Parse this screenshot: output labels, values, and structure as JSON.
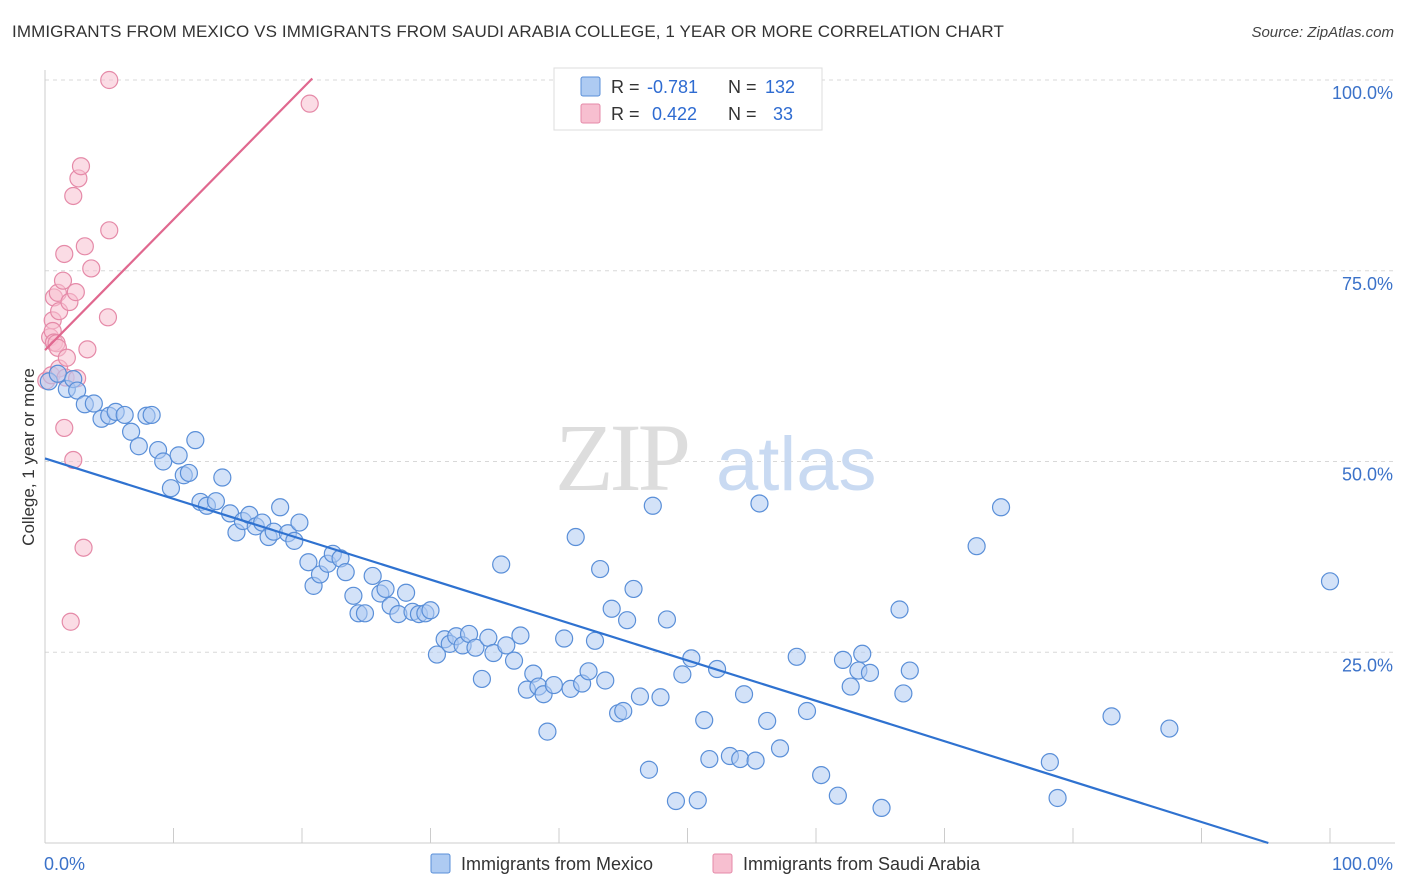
{
  "title": "IMMIGRANTS FROM MEXICO VS IMMIGRANTS FROM SAUDI ARABIA COLLEGE, 1 YEAR OR MORE CORRELATION CHART",
  "source": "Source: ZipAtlas.com",
  "watermark": {
    "zip": "ZIP",
    "atlas": "atlas"
  },
  "colors": {
    "mexico_fill": "#aecbf2",
    "mexico_stroke": "#5a8fd8",
    "mexico_line": "#2f72d0",
    "saudi_fill": "#f7bfd0",
    "saudi_stroke": "#e58aa8",
    "saudi_line": "#e0688f",
    "grid": "#d8d8d8",
    "tick_text": "#3b72c9"
  },
  "legend": {
    "rows": [
      {
        "r_label": "R =",
        "r_value": "-0.781",
        "n_label": "N =",
        "n_value": "132"
      },
      {
        "r_label": "R =",
        "r_value": "0.422",
        "n_label": "N =",
        "n_value": "33"
      }
    ]
  },
  "bottom_legend": {
    "mexico": "Immigrants from Mexico",
    "saudi": "Immigrants from Saudi Arabia"
  },
  "chart_data": {
    "type": "scatter",
    "title": "IMMIGRANTS FROM MEXICO VS IMMIGRANTS FROM SAUDI ARABIA COLLEGE, 1 YEAR OR MORE CORRELATION CHART",
    "xlabel": "",
    "ylabel": "College, 1 year or more",
    "xlim": [
      0,
      100
    ],
    "ylim": [
      0,
      102
    ],
    "x_tick_labels": [
      "0.0%",
      "100.0%"
    ],
    "y_ticks": [
      25,
      50,
      75,
      100
    ],
    "y_tick_labels": [
      "25.0%",
      "50.0%",
      "75.0%",
      "100.0%"
    ],
    "grid": true,
    "legend_position": "top-center",
    "series": [
      {
        "name": "Immigrants from Mexico",
        "R": -0.781,
        "N": 132,
        "trend": {
          "x": [
            0,
            95.2
          ],
          "y": [
            50.4,
            0
          ]
        },
        "points": [
          [
            0.3,
            60.5
          ],
          [
            1.0,
            61.5
          ],
          [
            1.7,
            59.5
          ],
          [
            2.2,
            60.8
          ],
          [
            2.5,
            59.3
          ],
          [
            3.1,
            57.5
          ],
          [
            3.8,
            57.6
          ],
          [
            4.4,
            55.6
          ],
          [
            5.0,
            56.0
          ],
          [
            5.5,
            56.5
          ],
          [
            6.2,
            56.1
          ],
          [
            6.7,
            53.9
          ],
          [
            7.3,
            52.0
          ],
          [
            7.9,
            56.0
          ],
          [
            8.3,
            56.1
          ],
          [
            8.8,
            51.5
          ],
          [
            9.2,
            50.0
          ],
          [
            9.8,
            46.5
          ],
          [
            10.4,
            50.8
          ],
          [
            10.8,
            48.2
          ],
          [
            11.2,
            48.5
          ],
          [
            11.7,
            52.8
          ],
          [
            12.1,
            44.7
          ],
          [
            12.6,
            44.2
          ],
          [
            13.3,
            44.8
          ],
          [
            13.8,
            47.9
          ],
          [
            14.4,
            43.2
          ],
          [
            14.9,
            40.7
          ],
          [
            15.4,
            42.2
          ],
          [
            15.9,
            43.0
          ],
          [
            16.4,
            41.5
          ],
          [
            16.9,
            42.0
          ],
          [
            17.4,
            40.1
          ],
          [
            17.8,
            40.8
          ],
          [
            18.3,
            44.0
          ],
          [
            18.9,
            40.6
          ],
          [
            19.4,
            39.6
          ],
          [
            19.8,
            42.0
          ],
          [
            20.5,
            36.8
          ],
          [
            20.9,
            33.7
          ],
          [
            21.4,
            35.2
          ],
          [
            22.0,
            36.6
          ],
          [
            22.4,
            37.9
          ],
          [
            23.0,
            37.3
          ],
          [
            23.4,
            35.5
          ],
          [
            24.0,
            32.4
          ],
          [
            24.4,
            30.1
          ],
          [
            24.9,
            30.1
          ],
          [
            25.5,
            35.0
          ],
          [
            26.1,
            32.7
          ],
          [
            26.5,
            33.3
          ],
          [
            26.9,
            31.1
          ],
          [
            27.5,
            30.0
          ],
          [
            28.1,
            32.8
          ],
          [
            28.6,
            30.3
          ],
          [
            29.1,
            30.0
          ],
          [
            29.6,
            30.1
          ],
          [
            30.0,
            30.5
          ],
          [
            30.5,
            24.7
          ],
          [
            31.1,
            26.7
          ],
          [
            31.5,
            26.1
          ],
          [
            32.0,
            27.1
          ],
          [
            32.5,
            25.9
          ],
          [
            33.0,
            27.4
          ],
          [
            33.5,
            25.6
          ],
          [
            34.0,
            21.5
          ],
          [
            34.5,
            26.9
          ],
          [
            34.9,
            24.9
          ],
          [
            35.5,
            36.5
          ],
          [
            35.9,
            25.9
          ],
          [
            36.5,
            23.9
          ],
          [
            37.0,
            27.2
          ],
          [
            37.5,
            20.1
          ],
          [
            38.0,
            22.2
          ],
          [
            38.4,
            20.5
          ],
          [
            38.8,
            19.5
          ],
          [
            39.1,
            14.6
          ],
          [
            39.6,
            20.7
          ],
          [
            40.4,
            26.8
          ],
          [
            40.9,
            20.2
          ],
          [
            41.3,
            40.1
          ],
          [
            41.8,
            20.9
          ],
          [
            42.3,
            22.5
          ],
          [
            42.8,
            26.5
          ],
          [
            43.2,
            35.9
          ],
          [
            43.6,
            21.3
          ],
          [
            44.1,
            30.7
          ],
          [
            44.6,
            17.0
          ],
          [
            45.0,
            17.3
          ],
          [
            45.3,
            29.2
          ],
          [
            45.8,
            33.3
          ],
          [
            46.3,
            19.2
          ],
          [
            47.0,
            9.6
          ],
          [
            47.3,
            44.2
          ],
          [
            47.9,
            19.1
          ],
          [
            48.4,
            29.3
          ],
          [
            49.1,
            5.5
          ],
          [
            49.6,
            22.1
          ],
          [
            50.3,
            24.2
          ],
          [
            50.8,
            5.6
          ],
          [
            51.3,
            16.1
          ],
          [
            51.7,
            11.0
          ],
          [
            52.3,
            22.8
          ],
          [
            53.3,
            11.4
          ],
          [
            54.1,
            11.0
          ],
          [
            54.4,
            19.5
          ],
          [
            55.3,
            10.8
          ],
          [
            55.6,
            44.5
          ],
          [
            56.2,
            16.0
          ],
          [
            57.2,
            12.4
          ],
          [
            58.5,
            24.4
          ],
          [
            59.3,
            17.3
          ],
          [
            60.4,
            8.9
          ],
          [
            61.7,
            6.2
          ],
          [
            62.1,
            24.0
          ],
          [
            62.7,
            20.5
          ],
          [
            63.3,
            22.6
          ],
          [
            63.6,
            24.8
          ],
          [
            64.2,
            22.3
          ],
          [
            65.1,
            4.6
          ],
          [
            66.5,
            30.6
          ],
          [
            66.8,
            19.6
          ],
          [
            67.3,
            22.6
          ],
          [
            72.5,
            38.9
          ],
          [
            74.4,
            44.0
          ],
          [
            78.2,
            10.6
          ],
          [
            78.8,
            5.9
          ],
          [
            83.0,
            16.6
          ],
          [
            87.5,
            15.0
          ],
          [
            100.0,
            34.3
          ]
        ]
      },
      {
        "name": "Immigrants from Saudi Arabia",
        "R": 0.422,
        "N": 33,
        "trend": {
          "x": [
            0,
            20.8
          ],
          "y": [
            64.6,
            100.2
          ]
        },
        "points": [
          [
            0.1,
            60.6
          ],
          [
            0.4,
            66.3
          ],
          [
            0.5,
            61.3
          ],
          [
            0.6,
            68.5
          ],
          [
            0.6,
            67.1
          ],
          [
            0.7,
            65.6
          ],
          [
            0.7,
            71.5
          ],
          [
            0.9,
            65.5
          ],
          [
            1.0,
            64.9
          ],
          [
            1.0,
            72.1
          ],
          [
            1.1,
            62.2
          ],
          [
            1.1,
            69.7
          ],
          [
            1.4,
            73.7
          ],
          [
            1.5,
            77.2
          ],
          [
            1.5,
            54.4
          ],
          [
            1.6,
            61.0
          ],
          [
            1.7,
            63.6
          ],
          [
            1.9,
            70.9
          ],
          [
            2.0,
            29.0
          ],
          [
            2.2,
            84.8
          ],
          [
            2.2,
            50.2
          ],
          [
            2.4,
            72.2
          ],
          [
            2.5,
            60.9
          ],
          [
            2.6,
            87.1
          ],
          [
            2.8,
            88.7
          ],
          [
            3.0,
            38.7
          ],
          [
            3.1,
            78.2
          ],
          [
            3.3,
            64.7
          ],
          [
            3.6,
            75.3
          ],
          [
            4.9,
            68.9
          ],
          [
            5.0,
            80.3
          ],
          [
            5.0,
            100.0
          ],
          [
            20.6,
            96.9
          ]
        ]
      }
    ]
  }
}
